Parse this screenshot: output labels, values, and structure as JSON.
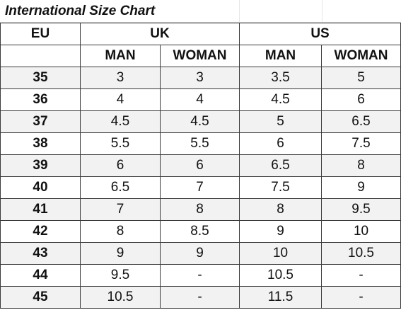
{
  "title": "International Size Chart",
  "headers": {
    "eu": "EU",
    "uk": "UK",
    "us": "US",
    "man": "MAN",
    "woman": "WOMAN"
  },
  "rows": [
    {
      "eu": "35",
      "uk_man": "3",
      "uk_woman": "3",
      "us_man": "3.5",
      "us_woman": "5"
    },
    {
      "eu": "36",
      "uk_man": "4",
      "uk_woman": "4",
      "us_man": "4.5",
      "us_woman": "6"
    },
    {
      "eu": "37",
      "uk_man": "4.5",
      "uk_woman": "4.5",
      "us_man": "5",
      "us_woman": "6.5"
    },
    {
      "eu": "38",
      "uk_man": "5.5",
      "uk_woman": "5.5",
      "us_man": "6",
      "us_woman": "7.5"
    },
    {
      "eu": "39",
      "uk_man": "6",
      "uk_woman": "6",
      "us_man": "6.5",
      "us_woman": "8"
    },
    {
      "eu": "40",
      "uk_man": "6.5",
      "uk_woman": "7",
      "us_man": "7.5",
      "us_woman": "9"
    },
    {
      "eu": "41",
      "uk_man": "7",
      "uk_woman": "8",
      "us_man": "8",
      "us_woman": "9.5"
    },
    {
      "eu": "42",
      "uk_man": "8",
      "uk_woman": "8.5",
      "us_man": "9",
      "us_woman": "10"
    },
    {
      "eu": "43",
      "uk_man": "9",
      "uk_woman": "9",
      "us_man": "10",
      "us_woman": "10.5"
    },
    {
      "eu": "44",
      "uk_man": "9.5",
      "uk_woman": "-",
      "us_man": "10.5",
      "us_woman": "-"
    },
    {
      "eu": "45",
      "uk_man": "10.5",
      "uk_woman": "-",
      "us_man": "11.5",
      "us_woman": "-"
    }
  ]
}
